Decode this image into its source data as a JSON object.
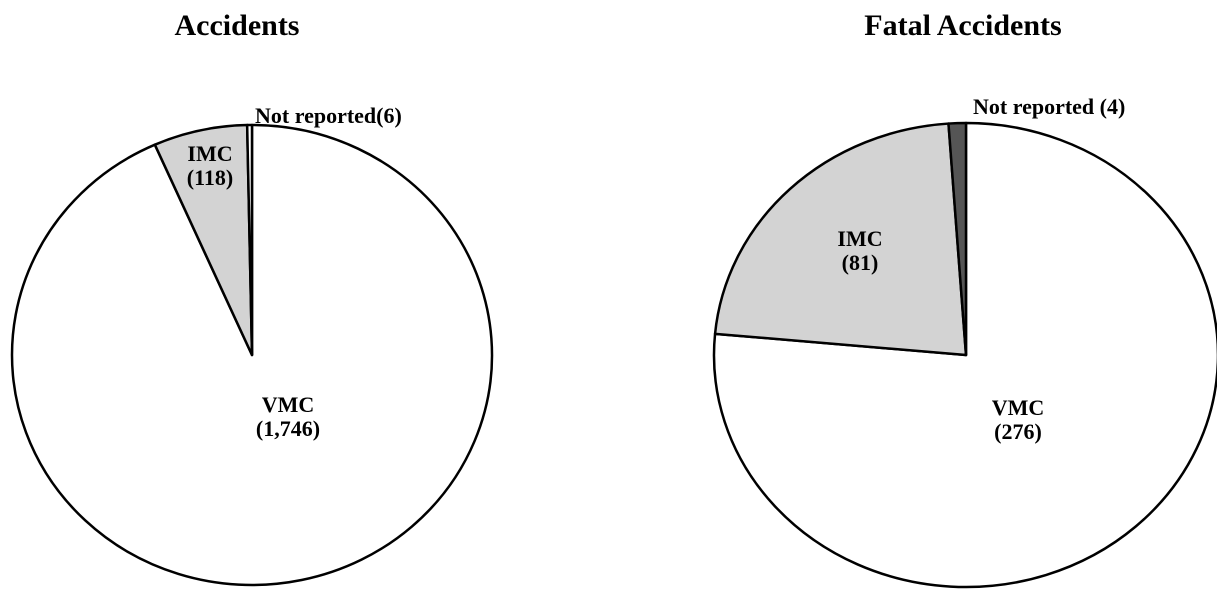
{
  "chart_data": [
    {
      "type": "pie",
      "title": "Accidents",
      "slices": [
        {
          "name": "VMC",
          "value": 1746,
          "label": [
            "VMC",
            "(1,746)"
          ],
          "color": "#ffffff"
        },
        {
          "name": "IMC",
          "value": 118,
          "label": [
            "IMC",
            "(118)"
          ],
          "color": "#d3d3d3"
        },
        {
          "name": "Not reported",
          "value": 6,
          "label": [
            "Not reported(6)"
          ],
          "color": "#ffffff"
        }
      ]
    },
    {
      "type": "pie",
      "title": "Fatal Accidents",
      "slices": [
        {
          "name": "VMC",
          "value": 276,
          "label": [
            "VMC",
            "(276)"
          ],
          "color": "#ffffff"
        },
        {
          "name": "IMC",
          "value": 81,
          "label": [
            "IMC",
            "(81)"
          ],
          "color": "#d3d3d3"
        },
        {
          "name": "Not reported",
          "value": 4,
          "label": [
            "Not reported (4)"
          ],
          "color": "#555555"
        }
      ]
    }
  ]
}
